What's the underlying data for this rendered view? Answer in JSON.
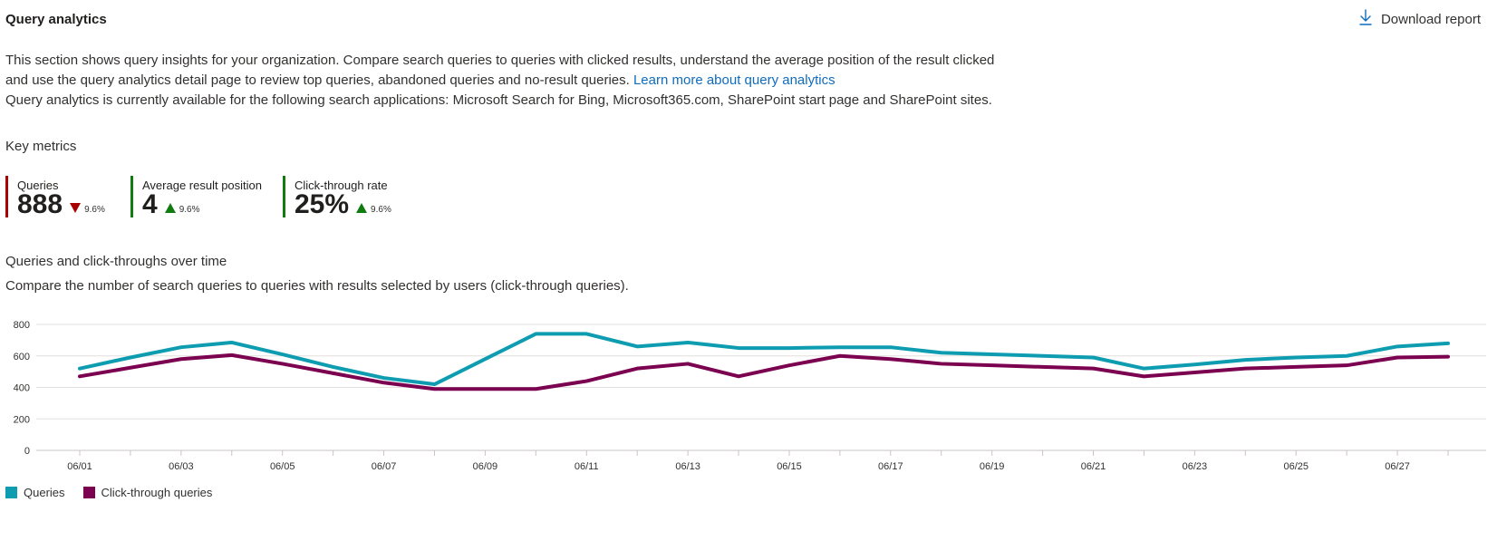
{
  "header": {
    "title": "Query analytics",
    "download_label": "Download report"
  },
  "description": {
    "line1": "This section shows query insights for your organization. Compare search queries to queries with clicked results, understand the average position of the result clicked",
    "line2": "and use the query analytics detail page to review top queries, abandoned queries and no-result queries.",
    "link": "Learn more about query analytics",
    "line3": "Query analytics is currently available for the following search applications: Microsoft Search for Bing, Microsoft365.com, SharePoint start page and SharePoint sites."
  },
  "key_metrics": {
    "heading": "Key metrics",
    "items": [
      {
        "name": "Queries",
        "value": "888",
        "delta": "9.6%",
        "direction": "down",
        "color": "#a80000"
      },
      {
        "name": "Average result position",
        "value": "4",
        "delta": "9.6%",
        "direction": "up",
        "color": "#107c10"
      },
      {
        "name": "Click-through rate",
        "value": "25%",
        "delta": "9.6%",
        "direction": "up",
        "color": "#107c10"
      }
    ]
  },
  "chart_section": {
    "heading": "Queries and click-throughs over time",
    "subtitle": "Compare the number of search queries to queries with results selected by users (click-through queries)."
  },
  "chart_data": {
    "type": "line",
    "x": [
      "06/01",
      "06/02",
      "06/03",
      "06/04",
      "06/05",
      "06/06",
      "06/07",
      "06/08",
      "06/09",
      "06/10",
      "06/11",
      "06/12",
      "06/13",
      "06/14",
      "06/15",
      "06/16",
      "06/17",
      "06/18",
      "06/19",
      "06/20",
      "06/21",
      "06/22",
      "06/23",
      "06/24",
      "06/25",
      "06/26",
      "06/27",
      "06/28"
    ],
    "x_tick_labels": [
      "06/01",
      "06/03",
      "06/05",
      "06/07",
      "06/09",
      "06/11",
      "06/13",
      "06/15",
      "06/17",
      "06/19",
      "06/21",
      "06/23",
      "06/25",
      "06/27"
    ],
    "series": [
      {
        "name": "Queries",
        "color": "#0e9cb0",
        "values": [
          520,
          590,
          655,
          685,
          610,
          530,
          460,
          420,
          580,
          740,
          740,
          660,
          685,
          650,
          650,
          655,
          655,
          620,
          610,
          600,
          590,
          520,
          545,
          575,
          590,
          600,
          660,
          680
        ]
      },
      {
        "name": "Click-through queries",
        "color": "#7b0050",
        "values": [
          470,
          525,
          580,
          605,
          550,
          490,
          430,
          390,
          390,
          390,
          440,
          520,
          550,
          470,
          540,
          600,
          580,
          550,
          540,
          530,
          520,
          470,
          495,
          520,
          530,
          540,
          590,
          595
        ]
      }
    ],
    "ylim": [
      0,
      800
    ],
    "y_ticks": [
      0,
      200,
      400,
      600,
      800
    ],
    "grid": true,
    "legend": "bottom-left"
  }
}
